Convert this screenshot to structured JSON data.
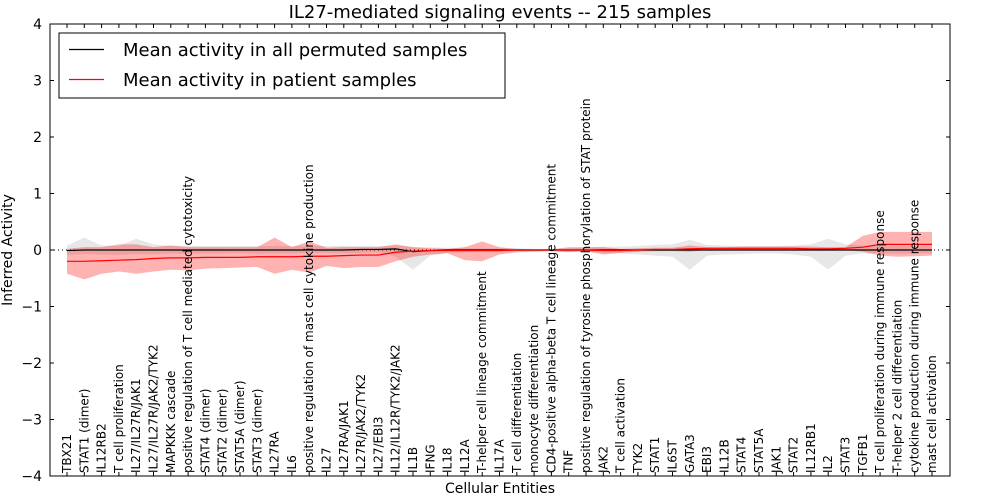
{
  "chart_data": {
    "type": "line",
    "title": "IL27-mediated signaling events -- 215 samples",
    "xlabel": "Cellular Entities",
    "ylabel": "Inferred Activity",
    "ylim": [
      -4,
      4
    ],
    "yticks": [
      -4,
      -3,
      -2,
      -1,
      0,
      1,
      2,
      3,
      4
    ],
    "legend_position": "top-left",
    "categories": [
      "TBX21",
      "STAT1 (dimer)",
      "IL12RB2",
      "T cell proliferation",
      "IL27/IL27R/JAK1",
      "IL27/IL27R/JAK2/TYK2",
      "MAPKKK cascade",
      "positive regulation of T cell mediated cytotoxicity",
      "STAT4 (dimer)",
      "STAT2 (dimer)",
      "STAT5A (dimer)",
      "STAT3 (dimer)",
      "IL27RA",
      "IL6",
      "positive regulation of mast cell cytokine production",
      "IL27",
      "IL27RA/JAK1",
      "IL27R/JAK2/TYK2",
      "IL27/EBI3",
      "IL12/IL12R/TYK2/JAK2",
      "IL1B",
      "IFNG",
      "IL18",
      "IL12A",
      "T-helper cell lineage commitment",
      "IL17A",
      "T cell differentiation",
      "monocyte differentiation",
      "CD4-positive alpha-beta T cell lineage commitment",
      "TNF",
      "positive regulation of tyrosine phosphorylation of STAT protein",
      "JAK2",
      "T cell activation",
      "TYK2",
      "STAT1",
      "IL6ST",
      "GATA3",
      "EBI3",
      "IL12B",
      "STAT4",
      "STAT5A",
      "JAK1",
      "STAT2",
      "IL12RB1",
      "IL2",
      "STAT3",
      "TGFB1",
      "T cell proliferation during immune response",
      "T-helper 2 cell differentiation",
      "cytokine production during immune response",
      "mast cell activation"
    ],
    "series": [
      {
        "name": "Mean activity in all permuted samples",
        "color": "#000000",
        "band_color": "#bbbbbb",
        "values": [
          -0.01,
          0.0,
          0.0,
          0.0,
          0.0,
          0.0,
          0.0,
          0.0,
          0.0,
          0.0,
          0.0,
          0.0,
          0.0,
          0.0,
          0.0,
          0.0,
          0.0,
          0.01,
          0.01,
          0.02,
          -0.03,
          -0.01,
          0.0,
          0.0,
          0.0,
          0.0,
          0.0,
          0.0,
          0.0,
          0.0,
          0.0,
          0.0,
          0.0,
          0.0,
          0.0,
          0.0,
          0.0,
          0.0,
          0.0,
          0.0,
          0.0,
          0.0,
          0.0,
          0.0,
          0.0,
          0.0,
          0.0,
          0.0,
          0.0,
          0.0,
          0.0
        ],
        "lower": [
          -0.09,
          -0.07,
          -0.08,
          -0.09,
          -0.07,
          -0.08,
          -0.06,
          -0.07,
          -0.06,
          -0.06,
          -0.05,
          -0.07,
          -0.06,
          -0.06,
          -0.05,
          -0.05,
          -0.06,
          -0.05,
          -0.04,
          -0.12,
          -0.35,
          -0.1,
          -0.05,
          -0.04,
          -0.03,
          -0.03,
          -0.02,
          -0.02,
          -0.02,
          -0.03,
          -0.03,
          -0.05,
          -0.06,
          -0.08,
          -0.1,
          -0.12,
          -0.35,
          -0.1,
          -0.08,
          -0.07,
          -0.06,
          -0.06,
          -0.08,
          -0.12,
          -0.35,
          -0.1,
          -0.06,
          -0.06,
          -0.07,
          -0.06,
          -0.06
        ],
        "upper": [
          0.08,
          0.22,
          0.08,
          0.07,
          0.2,
          0.1,
          0.07,
          0.08,
          0.07,
          0.07,
          0.07,
          0.07,
          0.07,
          0.07,
          0.07,
          0.07,
          0.07,
          0.07,
          0.07,
          0.08,
          0.05,
          0.05,
          0.04,
          0.04,
          0.03,
          0.03,
          0.03,
          0.02,
          0.02,
          0.03,
          0.04,
          0.06,
          0.06,
          0.07,
          0.09,
          0.1,
          0.18,
          0.09,
          0.08,
          0.07,
          0.07,
          0.07,
          0.08,
          0.1,
          0.2,
          0.1,
          0.08,
          0.07,
          0.07,
          0.07,
          0.08
        ]
      },
      {
        "name": "Mean activity in patient samples",
        "color": "#ff0000",
        "band_color": "#ff0000",
        "values": [
          -0.2,
          -0.2,
          -0.19,
          -0.18,
          -0.17,
          -0.15,
          -0.14,
          -0.14,
          -0.13,
          -0.13,
          -0.13,
          -0.12,
          -0.12,
          -0.12,
          -0.11,
          -0.11,
          -0.1,
          -0.09,
          -0.09,
          -0.04,
          -0.02,
          -0.01,
          -0.01,
          -0.01,
          -0.01,
          -0.01,
          0.0,
          0.0,
          0.0,
          0.0,
          0.0,
          -0.01,
          -0.01,
          0.0,
          0.01,
          0.01,
          0.02,
          0.03,
          0.03,
          0.03,
          0.03,
          0.03,
          0.03,
          0.02,
          0.02,
          0.03,
          0.05,
          0.1,
          0.1,
          0.1,
          0.1
        ],
        "lower": [
          -0.42,
          -0.52,
          -0.42,
          -0.38,
          -0.42,
          -0.38,
          -0.35,
          -0.36,
          -0.33,
          -0.32,
          -0.31,
          -0.3,
          -0.42,
          -0.35,
          -0.4,
          -0.28,
          -0.32,
          -0.3,
          -0.3,
          -0.2,
          -0.12,
          -0.08,
          -0.06,
          -0.18,
          -0.2,
          -0.08,
          -0.04,
          -0.03,
          -0.02,
          -0.04,
          -0.02,
          -0.08,
          -0.05,
          -0.03,
          -0.02,
          -0.02,
          -0.03,
          0.0,
          0.0,
          0.0,
          0.0,
          0.0,
          0.0,
          0.0,
          0.0,
          0.0,
          -0.03,
          -0.1,
          -0.12,
          -0.11,
          -0.1
        ],
        "upper": [
          0.02,
          0.05,
          0.05,
          0.1,
          0.1,
          0.05,
          0.08,
          0.05,
          0.05,
          0.05,
          0.05,
          0.05,
          0.22,
          0.05,
          0.15,
          0.04,
          0.05,
          0.05,
          0.05,
          0.1,
          0.05,
          0.03,
          0.02,
          0.05,
          0.15,
          0.05,
          0.02,
          0.01,
          0.01,
          0.05,
          0.05,
          0.05,
          0.02,
          0.03,
          0.04,
          0.04,
          0.08,
          0.05,
          0.05,
          0.06,
          0.06,
          0.06,
          0.06,
          0.06,
          0.05,
          0.05,
          0.25,
          0.32,
          0.32,
          0.32,
          0.32
        ]
      }
    ]
  }
}
